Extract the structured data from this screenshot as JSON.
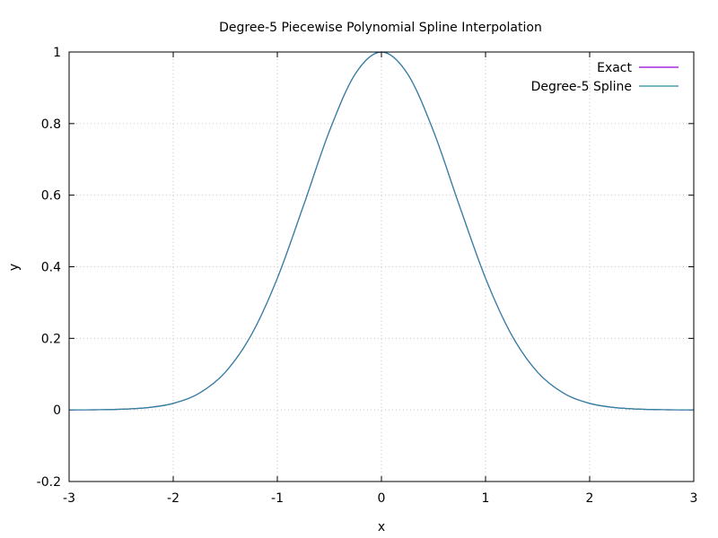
{
  "chart_data": {
    "type": "line",
    "title": "Degree-5 Piecewise Polynomial Spline Interpolation",
    "xlabel": "x",
    "ylabel": "y",
    "xlim": [
      -3,
      3
    ],
    "ylim": [
      -0.2,
      1
    ],
    "xticks": [
      -3,
      -2,
      -1,
      0,
      1,
      2,
      3
    ],
    "yticks": [
      -0.2,
      0,
      0.2,
      0.4,
      0.6,
      0.8,
      1
    ],
    "xtick_labels": [
      "-3",
      "-2",
      "-1",
      "0",
      "1",
      "2",
      "3"
    ],
    "ytick_labels": [
      "-0.2",
      "0",
      "0.2",
      "0.4",
      "0.6",
      "0.8",
      "1"
    ],
    "grid": true,
    "legend_position": "top-right",
    "x": [
      -3.0,
      -2.75,
      -2.5,
      -2.25,
      -2.0,
      -1.75,
      -1.5,
      -1.25,
      -1.0,
      -0.75,
      -0.5,
      -0.25,
      0.0,
      0.25,
      0.5,
      0.75,
      1.0,
      1.25,
      1.5,
      1.75,
      2.0,
      2.25,
      2.5,
      2.75,
      3.0
    ],
    "series": [
      {
        "name": "Exact",
        "color": "#9400d3",
        "values": [
          0.0001,
          0.0005,
          0.0019,
          0.0063,
          0.0183,
          0.0468,
          0.1054,
          0.2096,
          0.3679,
          0.5698,
          0.7788,
          0.9394,
          1.0,
          0.9394,
          0.7788,
          0.5698,
          0.3679,
          0.2096,
          0.1054,
          0.0468,
          0.0183,
          0.0063,
          0.0019,
          0.0005,
          0.0001
        ]
      },
      {
        "name": "Degree-5 Spline",
        "color": "#2a8a9c",
        "values": [
          0.0001,
          0.0005,
          0.0019,
          0.0063,
          0.0183,
          0.0468,
          0.1054,
          0.2096,
          0.3679,
          0.5698,
          0.7788,
          0.9394,
          1.0,
          0.9394,
          0.7788,
          0.5698,
          0.3679,
          0.2096,
          0.1054,
          0.0468,
          0.0183,
          0.0063,
          0.0019,
          0.0005,
          0.0001
        ]
      }
    ]
  }
}
